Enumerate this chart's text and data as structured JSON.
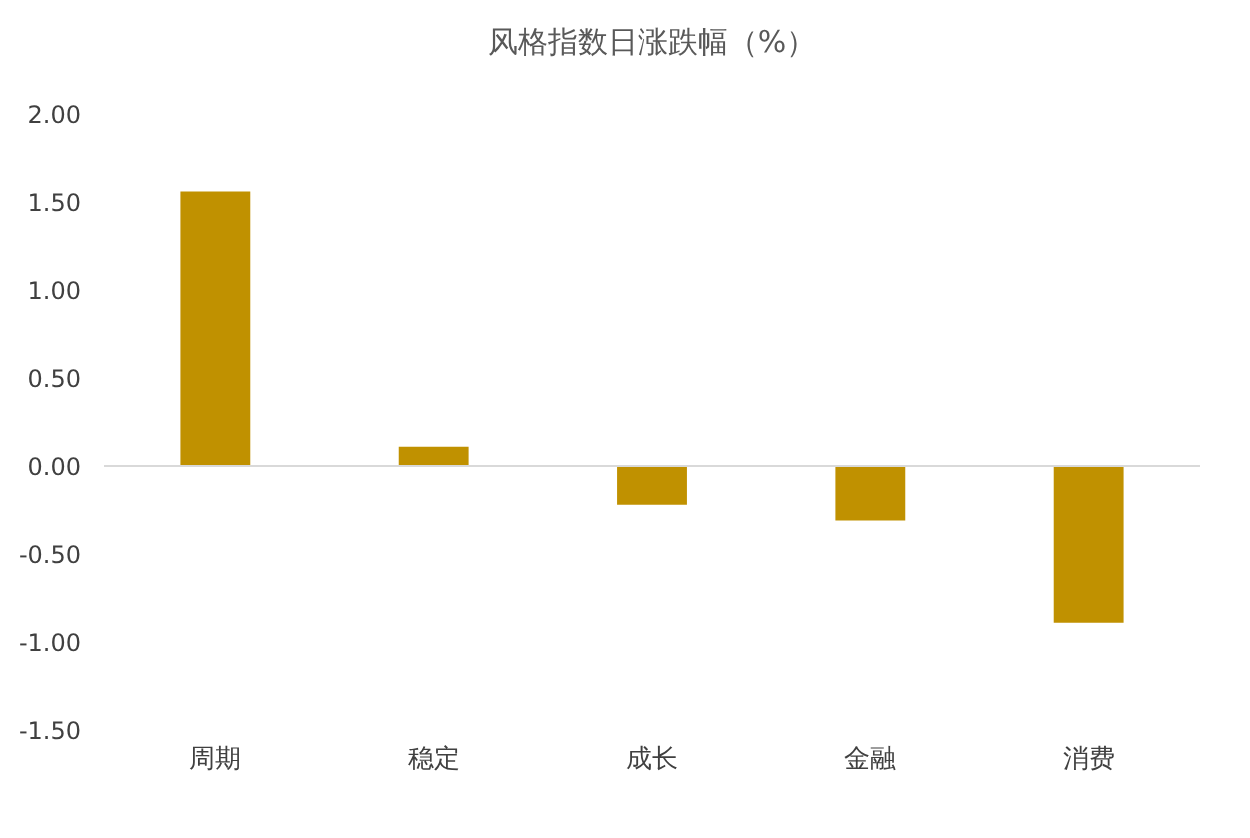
{
  "chart_data": {
    "type": "bar",
    "title": "风格指数日涨跌幅（%）",
    "categories": [
      "周期",
      "稳定",
      "成长",
      "金融",
      "消费"
    ],
    "values": [
      1.56,
      0.11,
      -0.22,
      -0.31,
      -0.89
    ],
    "color": "#c09100",
    "ylim": [
      -1.5,
      2.0
    ],
    "yticks": [
      {
        "value": -1.5,
        "label": "-1.50"
      },
      {
        "value": -1,
        "label": "-1.00"
      },
      {
        "value": -0.5,
        "label": "-0.50"
      },
      {
        "value": 0,
        "label": "0.00"
      },
      {
        "value": 0.5,
        "label": "0.50"
      },
      {
        "value": 1,
        "label": "1.00"
      },
      {
        "value": 1.5,
        "label": "1.50"
      },
      {
        "value": 2,
        "label": "2.00"
      }
    ]
  }
}
